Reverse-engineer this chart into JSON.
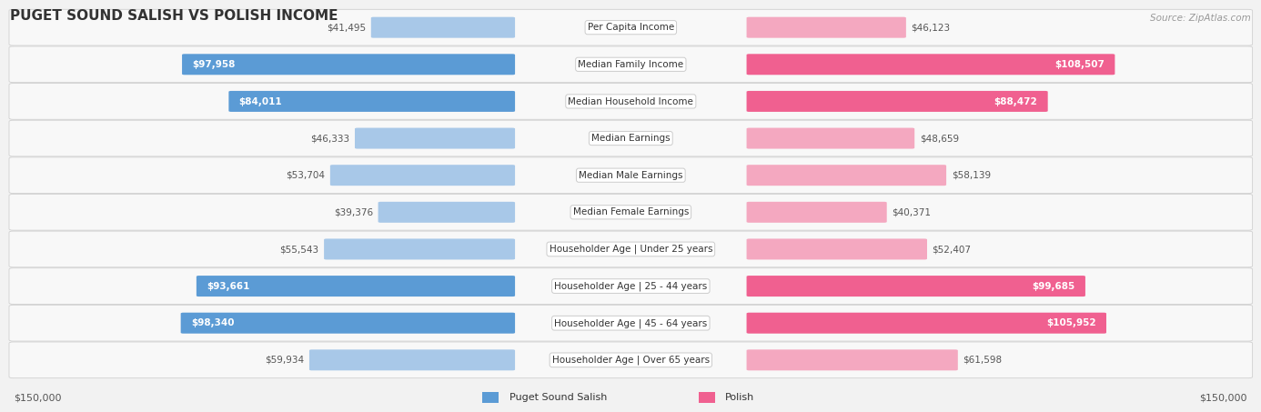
{
  "title": "PUGET SOUND SALISH VS POLISH INCOME",
  "source": "Source: ZipAtlas.com",
  "categories": [
    "Per Capita Income",
    "Median Family Income",
    "Median Household Income",
    "Median Earnings",
    "Median Male Earnings",
    "Median Female Earnings",
    "Householder Age | Under 25 years",
    "Householder Age | 25 - 44 years",
    "Householder Age | 45 - 64 years",
    "Householder Age | Over 65 years"
  ],
  "left_values": [
    41495,
    97958,
    84011,
    46333,
    53704,
    39376,
    55543,
    93661,
    98340,
    59934
  ],
  "right_values": [
    46123,
    108507,
    88472,
    48659,
    58139,
    40371,
    52407,
    99685,
    105952,
    61598
  ],
  "left_labels": [
    "$41,495",
    "$97,958",
    "$84,011",
    "$46,333",
    "$53,704",
    "$39,376",
    "$55,543",
    "$93,661",
    "$98,340",
    "$59,934"
  ],
  "right_labels": [
    "$46,123",
    "$108,507",
    "$88,472",
    "$48,659",
    "$58,139",
    "$40,371",
    "$52,407",
    "$99,685",
    "$105,952",
    "$61,598"
  ],
  "left_color_light": "#a8c8e8",
  "left_color_dark": "#5b9bd5",
  "right_color_light": "#f4a8c0",
  "right_color_dark": "#f06090",
  "max_value": 150000,
  "legend_left": "Puget Sound Salish",
  "legend_right": "Polish",
  "background_color": "#f2f2f2",
  "row_color_light": "#fafafa",
  "row_color_dark": "#efefef",
  "label_inside_threshold": 70000,
  "axis_label": "$150,000"
}
